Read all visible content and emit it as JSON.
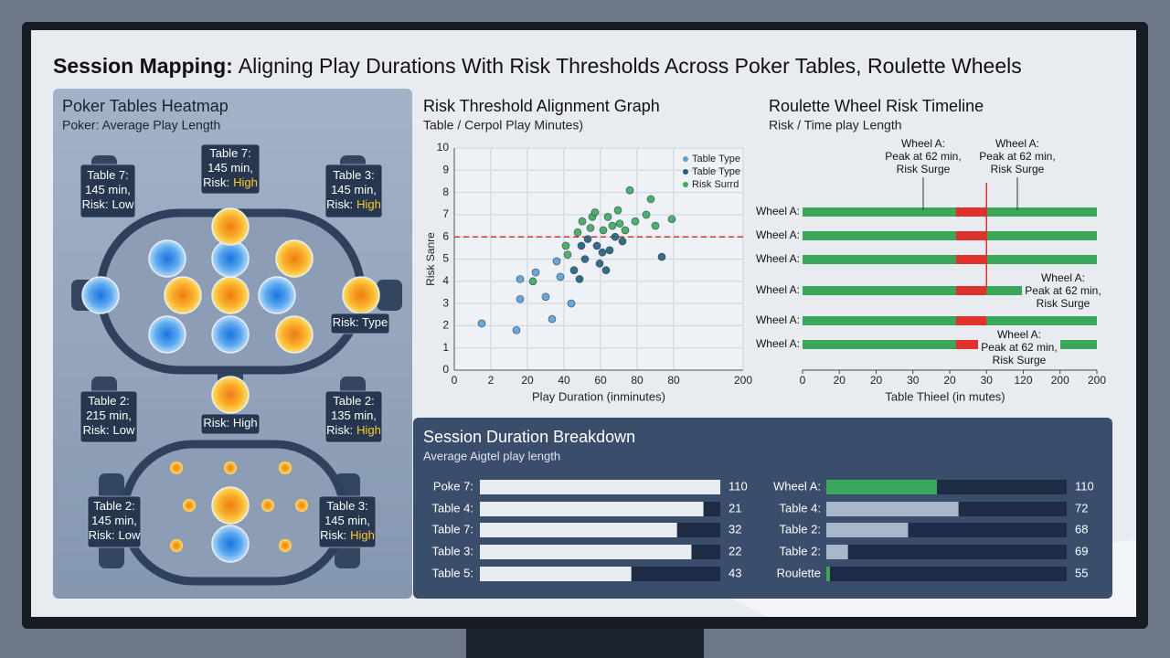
{
  "header": {
    "title_bold": "Session Mapping:",
    "title": "Aligning Play Durations With Risk Thresholds Across Poker Tables, Roulette Wheels"
  },
  "poker": {
    "title": "Poker Tables Heatmap",
    "subtitle": "Poker: Average Play Length",
    "callouts": [
      {
        "lines": [
          "Table 7:",
          "145 min,",
          "Risk:"
        ],
        "risk": "Low"
      },
      {
        "lines": [
          "Table 7:",
          "145 min,",
          "Risk:"
        ],
        "risk": "High"
      },
      {
        "lines": [
          "Table 3:",
          "145 min,",
          "Risk:"
        ],
        "risk": "High"
      },
      {
        "lines": [
          "Risk: Type"
        ]
      },
      {
        "lines": [
          "Table 2:",
          "215 min,",
          "Risk:"
        ],
        "risk": "Low"
      },
      {
        "lines": [
          "Risk: High"
        ]
      },
      {
        "lines": [
          "Table 2:",
          "135 min,",
          "Risk:"
        ],
        "risk": "High"
      },
      {
        "lines": [
          "Table 2:",
          "145 min,",
          "Risk:"
        ],
        "risk": "Low"
      },
      {
        "lines": [
          "Table 3:",
          "145 min,",
          "Risk:"
        ],
        "risk": "High"
      }
    ]
  },
  "chart_data": [
    {
      "type": "scatter",
      "title": "Risk Threshold Alignment Graph",
      "subtitle": "Table / Cerpol Play Minutes)",
      "xlabel": "Play Duration (inminutes)",
      "ylabel": "Risk Sanre",
      "xlim": [
        -20,
        138
      ],
      "xticks": [
        {
          "value": -20,
          "label": "0"
        },
        {
          "value": 0,
          "label": "2"
        },
        20,
        40,
        60,
        80,
        {
          "value": 100,
          "label": "80"
        },
        {
          "value": 138,
          "label": "200"
        }
      ],
      "ylim": [
        0,
        10
      ],
      "yticks": [
        0,
        1,
        2,
        3,
        4,
        5,
        6,
        7,
        8,
        9,
        10
      ],
      "grid": true,
      "threshold": 6,
      "threshold_color": "#d9342b",
      "legend": "upper right",
      "series": [
        {
          "name": "Table Type",
          "color": "#5aa0d8",
          "x": [
            -5,
            14,
            16,
            16,
            30,
            33.5,
            36,
            44,
            24.5,
            38
          ],
          "values": [
            2.1,
            1.8,
            4.1,
            3.2,
            3.3,
            2.3,
            4.9,
            3.0,
            4.4,
            4.2
          ]
        },
        {
          "name": "Table Type",
          "color": "#1f5f7e",
          "x": [
            45.5,
            48.5,
            51.5,
            53,
            58,
            59.5,
            61,
            63,
            65,
            72,
            93.5,
            49.5,
            68
          ],
          "values": [
            4.5,
            4.1,
            5.0,
            5.9,
            5.6,
            4.8,
            5.3,
            4.5,
            5.4,
            5.8,
            5.1,
            5.6,
            6.0
          ]
        },
        {
          "name": "Risk Surrd",
          "color": "#3cab5c",
          "x": [
            23,
            41,
            42,
            47.5,
            50,
            54.5,
            55.5,
            57,
            61.5,
            64,
            66.5,
            69.5,
            70.5,
            73.5,
            76,
            79,
            85,
            87.5,
            90,
            99
          ],
          "values": [
            4.0,
            5.6,
            5.2,
            6.2,
            6.7,
            6.4,
            6.9,
            7.1,
            6.3,
            6.9,
            6.5,
            7.2,
            6.6,
            6.3,
            8.1,
            6.7,
            7.0,
            7.7,
            6.5,
            6.8
          ]
        }
      ]
    },
    {
      "type": "timeline",
      "title": "Roulette Wheel Risk Timeline",
      "subtitle": "Risk / Time play Length",
      "xlabel": "Table Thieel (in mutes)",
      "xlim": [
        0,
        8
      ],
      "xticks": [
        0,
        {
          "value": 1,
          "label": "20"
        },
        {
          "value": 2,
          "label": "20"
        },
        {
          "value": 3,
          "label": "30"
        },
        {
          "value": 4,
          "label": "20"
        },
        {
          "value": 5,
          "label": "30"
        },
        {
          "value": 6,
          "label": "120"
        },
        {
          "value": 7,
          "label": "200"
        },
        {
          "value": 8,
          "label": "200"
        }
      ],
      "threshold": 5,
      "color": "#3aa85a",
      "risk_color": "#e0322c",
      "rows": [
        {
          "name": "Wheel A:",
          "start": 0,
          "end": 8,
          "risk_start": 4.17,
          "risk_end": 5
        },
        {
          "name": "Wheel A:",
          "start": 0,
          "end": 8,
          "risk_start": 4.17,
          "risk_end": 5
        },
        {
          "name": "Wheel A:",
          "start": 0,
          "end": 8,
          "risk_start": 4.17,
          "risk_end": 5
        },
        {
          "name": "Wheel A:",
          "start": 0,
          "end": 8,
          "risk_start": 4.17,
          "risk_end": 5
        },
        {
          "name": "Wheel A:",
          "start": 0,
          "end": 8,
          "risk_start": 4.17,
          "risk_end": 5
        },
        {
          "name": "Wheel A:",
          "start": 0,
          "end": 8,
          "risk_start": 4.17,
          "risk_end": 5
        }
      ],
      "annotations": [
        {
          "lines": [
            "Wheel A:",
            "Peak at 62 min,",
            "Risk Surge"
          ]
        },
        {
          "lines": [
            "Wheel A:",
            "Peak at 62 min,",
            "Risk Surge"
          ]
        },
        {
          "lines": [
            "Wheel A:",
            "Peak at 62 min,",
            "Risk Surge"
          ]
        },
        {
          "lines": [
            "Wheel A:",
            "Peak at 62 min,",
            "Risk Surge"
          ]
        }
      ]
    }
  ],
  "breakdown": {
    "title": "Session Duration Breakdown",
    "subtitle": "Average Aigtel play length",
    "left": [
      {
        "label": "Poke 7:",
        "value": "110",
        "fill": 100
      },
      {
        "label": "Table 4:",
        "value": "21",
        "fill": 93
      },
      {
        "label": "Table 7:",
        "value": "32",
        "fill": 82
      },
      {
        "label": "Table 3:",
        "value": "22",
        "fill": 88
      },
      {
        "label": "Table 5:",
        "value": "43",
        "fill": 63
      }
    ],
    "right": [
      {
        "label": "Wheel A:",
        "value": "110",
        "fill": 46,
        "color": "#3aa85a"
      },
      {
        "label": "Table 4:",
        "value": "72",
        "fill": 55,
        "color": "#a9b7ca"
      },
      {
        "label": "Table 2:",
        "value": "68",
        "fill": 34,
        "color": "#a9b7ca"
      },
      {
        "label": "Table 2:",
        "value": "69",
        "fill": 9,
        "color": "#a9b7ca"
      },
      {
        "label": "Roulette",
        "value": "55",
        "fill": 1.5,
        "color": "#3aa85a"
      }
    ]
  }
}
